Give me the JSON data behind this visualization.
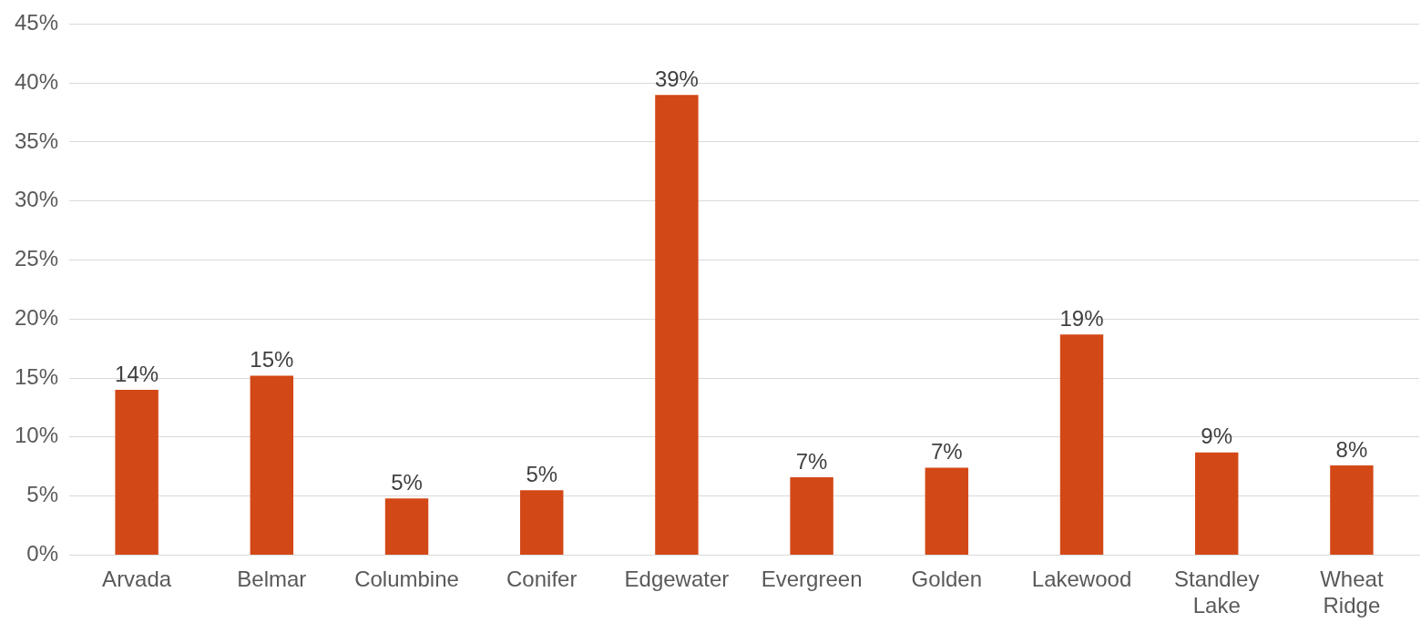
{
  "chart_data": {
    "type": "bar",
    "categories": [
      "Arvada",
      "Belmar",
      "Columbine",
      "Conifer",
      "Edgewater",
      "Evergreen",
      "Golden",
      "Lakewood",
      "Standley Lake",
      "Wheat Ridge"
    ],
    "values": [
      14.0,
      15.2,
      4.8,
      5.5,
      39.0,
      6.6,
      7.4,
      18.7,
      8.7,
      7.6
    ],
    "value_labels": [
      "14%",
      "15%",
      "5%",
      "5%",
      "39%",
      "7%",
      "7%",
      "19%",
      "9%",
      "8%"
    ],
    "color": "#d34817",
    "ylim": [
      0,
      45
    ],
    "yticks": [
      {
        "value": 0,
        "label": "0%"
      },
      {
        "value": 5,
        "label": "5%"
      },
      {
        "value": 10,
        "label": "10%"
      },
      {
        "value": 15,
        "label": "15%"
      },
      {
        "value": 20,
        "label": "20%"
      },
      {
        "value": 25,
        "label": "25%"
      },
      {
        "value": 30,
        "label": "30%"
      },
      {
        "value": 35,
        "label": "35%"
      },
      {
        "value": 40,
        "label": "40%"
      },
      {
        "value": 45,
        "label": "45%"
      }
    ],
    "grid": "y",
    "legend": false
  }
}
